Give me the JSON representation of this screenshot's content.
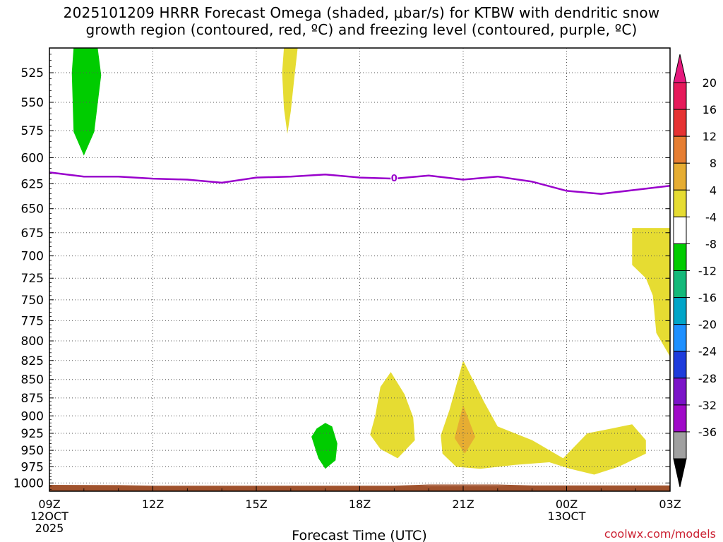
{
  "chart_data": {
    "type": "heatmap",
    "title": "2025101209 HRRR Forecast Omega (shaded, μbar/s) for KTBW with dendritic snow",
    "title_line2": "growth region (contoured, red, ºC) and freezing level (contoured, purple, ºC)",
    "xlabel": "Forecast Time (UTC)",
    "ylabel": "",
    "x_ticks": [
      "09Z",
      "12Z",
      "15Z",
      "18Z",
      "21Z",
      "00Z",
      "03Z"
    ],
    "x_tick_hours": [
      0,
      3,
      6,
      9,
      12,
      15,
      18
    ],
    "x_date_labels": [
      {
        "hour": 0,
        "line1": "12OCT",
        "line2": "2025"
      },
      {
        "hour": 15,
        "line1": "13OCT",
        "line2": ""
      }
    ],
    "xlim_hours": [
      0,
      18
    ],
    "y_ticks": [
      525,
      550,
      575,
      600,
      625,
      650,
      675,
      700,
      725,
      750,
      775,
      800,
      825,
      850,
      875,
      900,
      925,
      950,
      975,
      1000
    ],
    "ylim_hpa": [
      1013,
      505
    ],
    "y_scale": "log-pressure",
    "grid": true,
    "freezing_level": {
      "label": "0",
      "color": "#9900cc",
      "points": [
        [
          0,
          614
        ],
        [
          1,
          618
        ],
        [
          2,
          618
        ],
        [
          3,
          620
        ],
        [
          4,
          621
        ],
        [
          5,
          624
        ],
        [
          6,
          619
        ],
        [
          7,
          618
        ],
        [
          8,
          616
        ],
        [
          9,
          619
        ],
        [
          10,
          620
        ],
        [
          11,
          617
        ],
        [
          12,
          621
        ],
        [
          13,
          618
        ],
        [
          14,
          623
        ],
        [
          15,
          632
        ],
        [
          16,
          635
        ],
        [
          17,
          631
        ],
        [
          18,
          627
        ]
      ]
    },
    "omega_regions": [
      {
        "value_class": "-8 to -4",
        "color": "#00cc00",
        "polygon": [
          [
            0.7,
            505
          ],
          [
            1.4,
            505
          ],
          [
            1.5,
            527
          ],
          [
            1.3,
            576
          ],
          [
            1.0,
            598
          ],
          [
            0.7,
            576
          ],
          [
            0.65,
            525
          ]
        ]
      },
      {
        "value_class": "4 to 8",
        "color": "#e6dc32",
        "polygon": [
          [
            6.8,
            505
          ],
          [
            7.2,
            505
          ],
          [
            7.1,
            530
          ],
          [
            7.0,
            558
          ],
          [
            6.9,
            578
          ],
          [
            6.8,
            555
          ],
          [
            6.75,
            525
          ]
        ]
      },
      {
        "value_class": "-8 to -4",
        "color": "#00cc00",
        "polygon": [
          [
            8.0,
            910
          ],
          [
            8.2,
            915
          ],
          [
            8.35,
            940
          ],
          [
            8.3,
            965
          ],
          [
            8.0,
            978
          ],
          [
            7.8,
            962
          ],
          [
            7.6,
            930
          ],
          [
            7.75,
            918
          ]
        ]
      },
      {
        "value_class": "4 to 8",
        "color": "#e6dc32",
        "polygon": [
          [
            9.9,
            840
          ],
          [
            10.3,
            870
          ],
          [
            10.55,
            902
          ],
          [
            10.6,
            935
          ],
          [
            10.1,
            962
          ],
          [
            9.6,
            948
          ],
          [
            9.3,
            927
          ],
          [
            9.45,
            900
          ],
          [
            9.6,
            860
          ]
        ]
      },
      {
        "value_class": "4 to 8",
        "color": "#e6dc32",
        "polygon": [
          [
            12.0,
            825
          ],
          [
            12.6,
            880
          ],
          [
            13.0,
            915
          ],
          [
            14.0,
            935
          ],
          [
            14.9,
            962
          ],
          [
            15.6,
            925
          ],
          [
            16.3,
            918
          ],
          [
            16.9,
            912
          ],
          [
            17.3,
            935
          ],
          [
            17.3,
            955
          ],
          [
            16.5,
            975
          ],
          [
            15.8,
            987
          ],
          [
            15.1,
            978
          ],
          [
            14.5,
            968
          ],
          [
            13.5,
            972
          ],
          [
            12.5,
            978
          ],
          [
            11.8,
            975
          ],
          [
            11.4,
            955
          ],
          [
            11.35,
            928
          ],
          [
            11.6,
            892
          ]
        ]
      },
      {
        "value_class": "8 to 12",
        "color": "#e6ad32",
        "polygon": [
          [
            12.0,
            885
          ],
          [
            12.35,
            930
          ],
          [
            12.05,
            955
          ],
          [
            11.75,
            932
          ]
        ]
      },
      {
        "value_class": "4 to 8",
        "color": "#e6dc32",
        "polygon": [
          [
            16.9,
            670
          ],
          [
            18.0,
            670
          ],
          [
            18.0,
            820
          ],
          [
            17.6,
            790
          ],
          [
            17.5,
            745
          ],
          [
            17.3,
            725
          ],
          [
            16.9,
            710
          ]
        ]
      }
    ],
    "surface_band": {
      "color": "#a0522d",
      "top_hpa": 1005
    },
    "colorbar": {
      "ticks": [
        "20",
        "16",
        "12",
        "8",
        "4",
        "-4",
        "-8",
        "-12",
        "-16",
        "-20",
        "-24",
        "-28",
        "-32",
        "-36"
      ],
      "bins": [
        {
          "color": "#e6195a"
        },
        {
          "color": "#e63232"
        },
        {
          "color": "#e67e32"
        },
        {
          "color": "#e6ad32"
        },
        {
          "color": "#e6dc32"
        },
        {
          "color": "#ffffff"
        },
        {
          "color": "#00cc00"
        },
        {
          "color": "#14b97a"
        },
        {
          "color": "#00a5c8"
        },
        {
          "color": "#1e90ff"
        },
        {
          "color": "#1e3cdc"
        },
        {
          "color": "#7b14c8"
        },
        {
          "color": "#a00ac8"
        },
        {
          "color": "#a0a0a0"
        }
      ],
      "top_arrow_color": "#e6197d",
      "bottom_arrow_color": "#000000"
    }
  },
  "credit": "coolwx.com/models"
}
